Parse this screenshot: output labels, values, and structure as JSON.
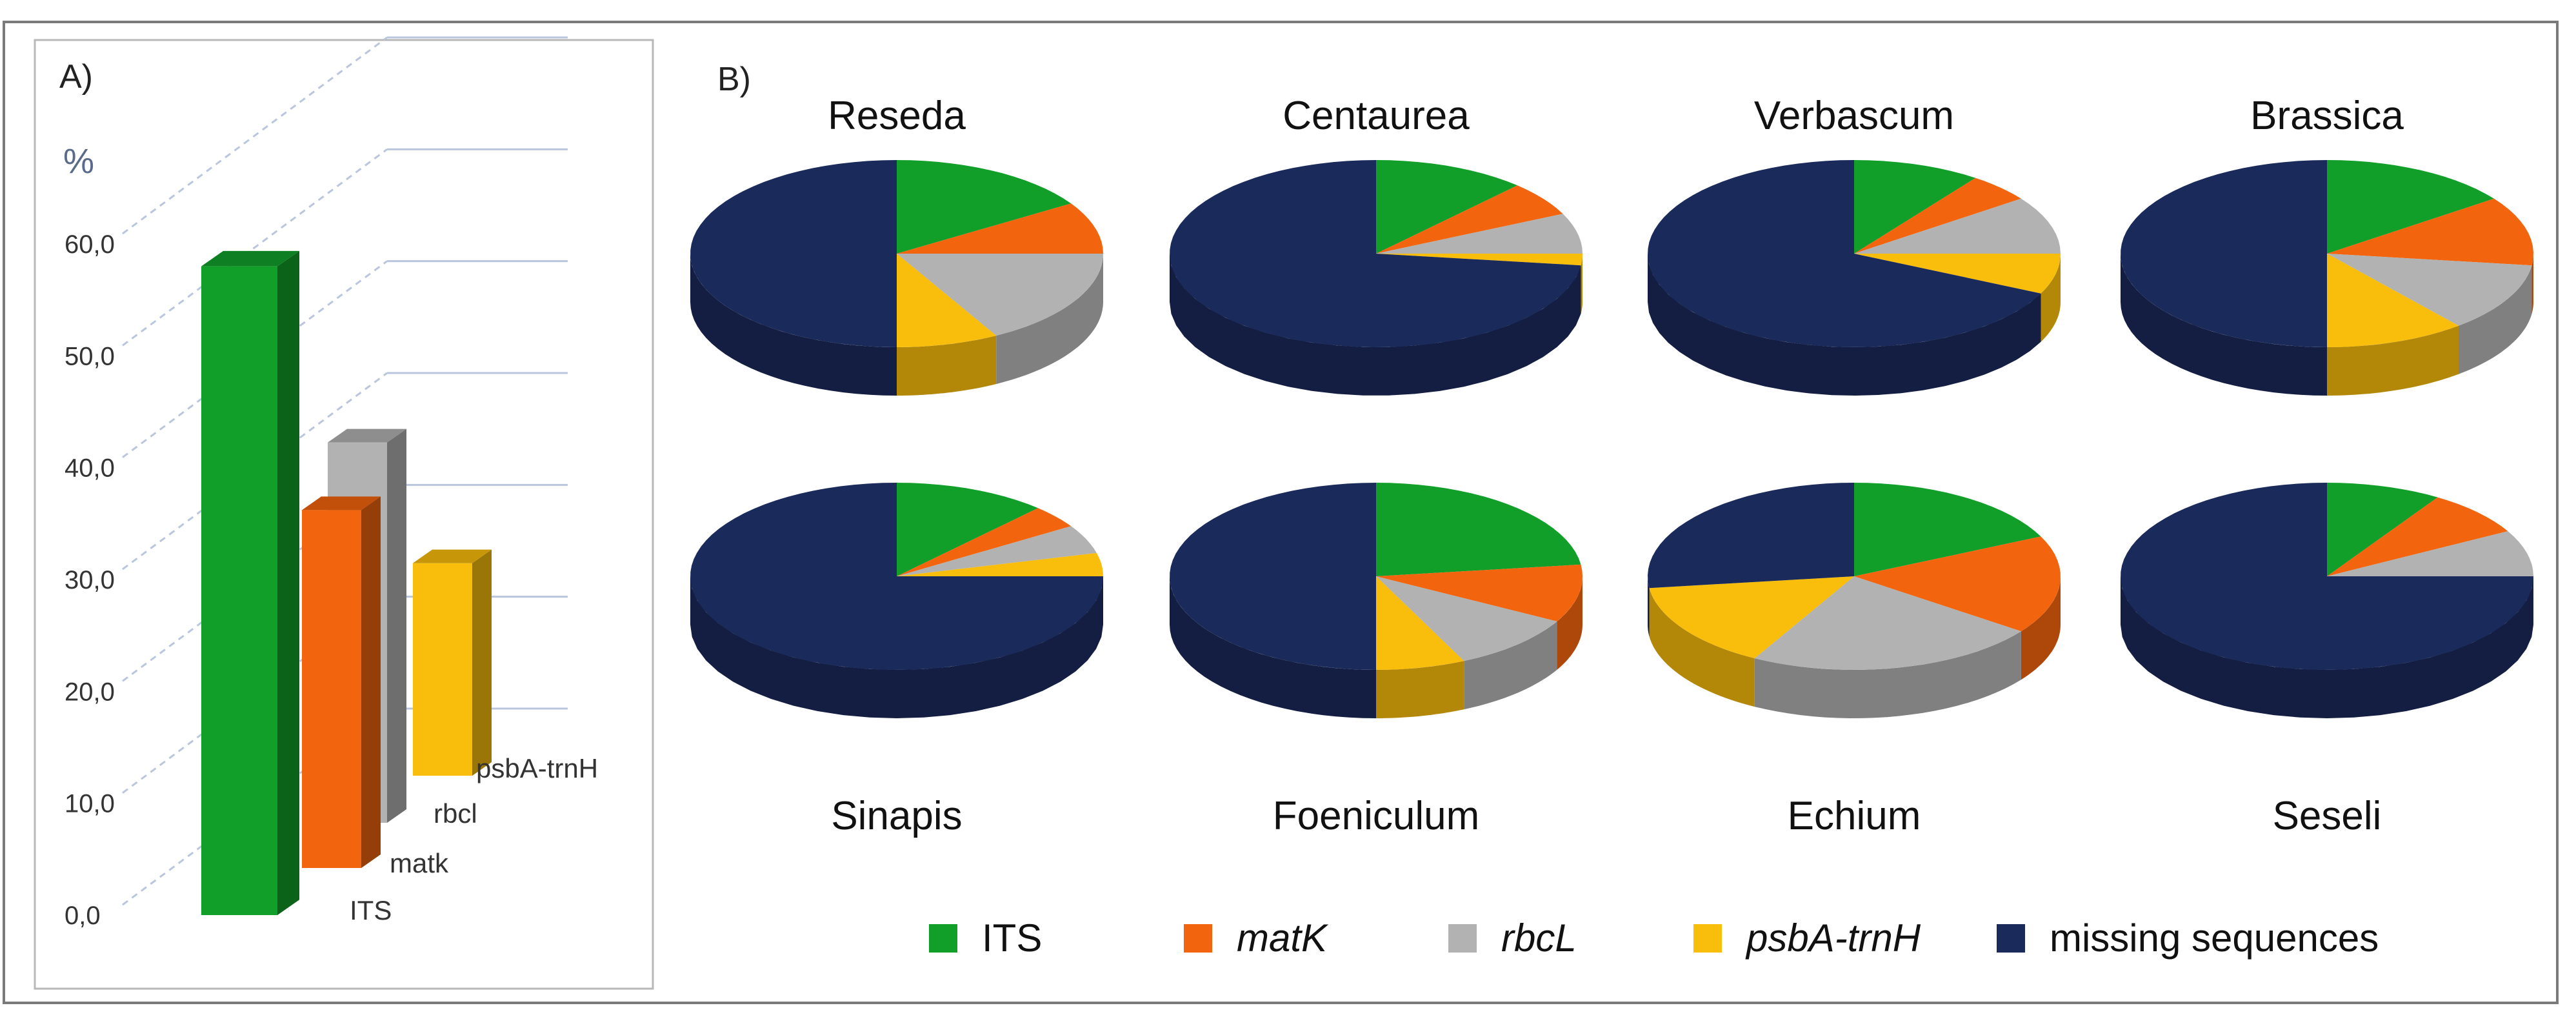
{
  "panel_a": {
    "label": "A)",
    "unit": "%"
  },
  "panel_b": {
    "label": "B)"
  },
  "legend": [
    {
      "label": "ITS",
      "italic": false,
      "color": "#119f2a"
    },
    {
      "label": "matK",
      "italic": true,
      "color": "#f2640e"
    },
    {
      "label": "rbcL",
      "italic": true,
      "color": "#b2b2b2"
    },
    {
      "label": "psbA-trnH",
      "italic": true,
      "color": "#f9bd0b"
    },
    {
      "label": "missing sequences",
      "italic": false,
      "color": "#1a2a5b"
    }
  ],
  "chart_data": [
    {
      "type": "bar",
      "ylim": [
        0,
        60
      ],
      "yticks": [
        "0,0",
        "10,0",
        "20,0",
        "30,0",
        "40,0",
        "50,0",
        "60,0"
      ],
      "ylabel": "%",
      "categories": [
        "ITS",
        "matk",
        "rbcl",
        "psbA-trnH"
      ],
      "values": [
        58,
        32,
        34,
        19
      ],
      "colors": [
        "#119f2a",
        "#f2640e",
        "#b2b2b2",
        "#f9bd0b"
      ],
      "grid": true
    },
    {
      "type": "pie",
      "slice_labels": [
        "ITS",
        "matK",
        "rbcL",
        "psbA-trnH",
        "missing sequences"
      ],
      "colors": [
        "#119f2a",
        "#f2640e",
        "#b2b2b2",
        "#f9bd0b",
        "#1a2a5b"
      ],
      "pies": [
        {
          "title": "Reseda",
          "values": [
            16,
            9,
            17,
            8,
            50
          ]
        },
        {
          "title": "Centaurea",
          "values": [
            12,
            6,
            7,
            2,
            73
          ]
        },
        {
          "title": "Verbascum",
          "values": [
            10,
            5,
            10,
            7,
            68
          ]
        },
        {
          "title": "Brassica",
          "values": [
            15,
            12,
            12,
            11,
            50
          ]
        },
        {
          "title": "Sinapis",
          "values": [
            12,
            4,
            5,
            4,
            75
          ]
        },
        {
          "title": "Foeniculum",
          "values": [
            23,
            10,
            10,
            7,
            50
          ]
        },
        {
          "title": "Echium",
          "values": [
            18,
            17,
            23,
            15,
            27
          ]
        },
        {
          "title": "Seseli",
          "values": [
            9,
            8,
            8,
            0,
            75
          ]
        }
      ]
    }
  ]
}
